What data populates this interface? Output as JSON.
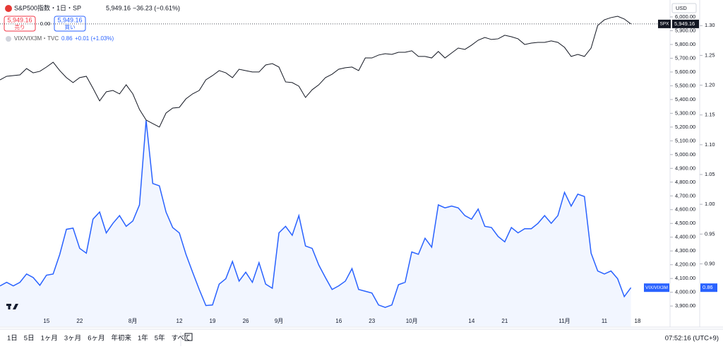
{
  "header": {
    "symbol": "S&P500指数・1日・SP",
    "price": "5,949.16",
    "change": "−36.23 (−0.61%)",
    "sell_price": "5,949.16",
    "sell": "売り",
    "spread": "0.00",
    "buy_price": "5,949.16",
    "buy": "買い",
    "compare": "VIX/VIX3M・TVC",
    "compare_value": "0.86",
    "compare_change": "+0.01 (+1.03%)"
  },
  "currency": "USD",
  "chart_data": {
    "type": "line",
    "categories": [
      null,
      null,
      null,
      null,
      null,
      null,
      null,
      "15",
      null,
      null,
      null,
      null,
      "22",
      null,
      null,
      null,
      null,
      null,
      null,
      null,
      "8月",
      null,
      null,
      null,
      null,
      null,
      null,
      "12",
      null,
      null,
      null,
      null,
      "19",
      null,
      null,
      null,
      null,
      "26",
      null,
      null,
      null,
      null,
      "9月",
      null,
      null,
      null,
      null,
      null,
      null,
      null,
      null,
      "16",
      null,
      null,
      null,
      null,
      "23",
      null,
      null,
      null,
      null,
      null,
      "10月",
      null,
      null,
      null,
      null,
      null,
      null,
      null,
      null,
      "14",
      null,
      null,
      null,
      null,
      "21",
      null,
      null,
      null,
      null,
      null,
      null,
      null,
      null,
      "11月",
      null,
      null,
      null,
      null,
      null,
      "11",
      null,
      null,
      null,
      null,
      "18"
    ],
    "series": [
      {
        "name": "SPX",
        "color": "#131722",
        "last_label": "5,949.16",
        "values": [
          5543,
          5569,
          5574,
          5579,
          5625,
          5594,
          5605,
          5636,
          5671,
          5610,
          5559,
          5523,
          5559,
          5569,
          5482,
          5390,
          5456,
          5466,
          5441,
          5507,
          5441,
          5328,
          5251,
          5225,
          5200,
          5302,
          5338,
          5343,
          5405,
          5441,
          5466,
          5543,
          5574,
          5610,
          5594,
          5559,
          5620,
          5610,
          5600,
          5600,
          5651,
          5661,
          5636,
          5528,
          5523,
          5497,
          5415,
          5471,
          5507,
          5559,
          5584,
          5620,
          5631,
          5636,
          5610,
          5702,
          5702,
          5723,
          5733,
          5728,
          5743,
          5743,
          5754,
          5713,
          5713,
          5702,
          5749,
          5702,
          5738,
          5774,
          5764,
          5795,
          5831,
          5851,
          5836,
          5841,
          5867,
          5856,
          5841,
          5800,
          5810,
          5815,
          5815,
          5826,
          5815,
          5779,
          5713,
          5728,
          5713,
          5774,
          5938,
          5979,
          5995,
          6005,
          5985,
          5949.16,
          null
        ]
      },
      {
        "name": "VIX/VIX3M",
        "color": "#2962ff",
        "axis": "y2",
        "last_label": "0.86",
        "values": [
          0.863,
          0.869,
          0.863,
          0.869,
          0.883,
          0.877,
          0.864,
          0.881,
          0.883,
          0.916,
          0.958,
          0.96,
          0.926,
          0.918,
          0.975,
          0.987,
          0.952,
          0.968,
          0.981,
          0.963,
          0.972,
          0.999,
          1.141,
          1.035,
          1.031,
          0.987,
          0.961,
          0.952,
          0.916,
          0.886,
          0.857,
          0.83,
          0.831,
          0.866,
          0.875,
          0.904,
          0.871,
          0.886,
          0.869,
          0.902,
          0.866,
          0.859,
          0.952,
          0.963,
          0.948,
          0.981,
          0.93,
          0.926,
          0.898,
          0.877,
          0.857,
          0.863,
          0.871,
          0.892,
          0.857,
          0.854,
          0.851,
          0.831,
          0.827,
          0.831,
          0.865,
          0.869,
          0.92,
          0.916,
          0.943,
          0.928,
          0.999,
          0.994,
          0.997,
          0.994,
          0.981,
          0.975,
          0.992,
          0.963,
          0.961,
          0.946,
          0.937,
          0.961,
          0.952,
          0.959,
          0.959,
          0.968,
          0.981,
          0.968,
          0.981,
          1.02,
          0.997,
          1.017,
          1.013,
          0.918,
          0.888,
          0.883,
          0.888,
          0.875,
          0.845,
          0.86,
          null
        ]
      }
    ],
    "ylim": [
      3752,
      6123
    ],
    "yticks": [
      {
        "value": 6000,
        "label": "6,000.00"
      },
      {
        "value": 5900,
        "label": "5,900.00"
      },
      {
        "value": 5800,
        "label": "5,800.00"
      },
      {
        "value": 5700,
        "label": "5,700.00"
      },
      {
        "value": 5600,
        "label": "5,600.00"
      },
      {
        "value": 5500,
        "label": "5,500.00"
      },
      {
        "value": 5400,
        "label": "5,400.00"
      },
      {
        "value": 5300,
        "label": "5,300.00"
      },
      {
        "value": 5200,
        "label": "5,200.00"
      },
      {
        "value": 5100,
        "label": "5,100.00"
      },
      {
        "value": 5000,
        "label": "5,000.00"
      },
      {
        "value": 4900,
        "label": "4,900.00"
      },
      {
        "value": 4800,
        "label": "4,800.00"
      },
      {
        "value": 4700,
        "label": "4,700.00"
      },
      {
        "value": 4600,
        "label": "4,600.00"
      },
      {
        "value": 4500,
        "label": "4,500.00"
      },
      {
        "value": 4400,
        "label": "4,400.00"
      },
      {
        "value": 4300,
        "label": "4,300.00"
      },
      {
        "value": 4200,
        "label": "4,200.00"
      },
      {
        "value": 4100,
        "label": "4,100.00"
      },
      {
        "value": 4000,
        "label": "4,000.00"
      },
      {
        "value": 3900,
        "label": "3,900.00"
      }
    ],
    "y2lim": [
      0.795,
      1.343
    ],
    "y2ticks": [
      {
        "value": 1.3,
        "label": "1.30"
      },
      1.25,
      {
        "value": 1.2,
        "label": "1.20"
      },
      1.15,
      {
        "value": 1.1,
        "label": "1.10"
      },
      1.05,
      {
        "value": 1,
        "label": "1.00"
      },
      0.95,
      {
        "value": 0.9,
        "label": "0.90"
      }
    ]
  },
  "toolbar": {
    "ranges": [
      "1日",
      "5日",
      "1ヶ月",
      "3ヶ月",
      "6ヶ月",
      "年初来",
      "1年",
      "5年",
      "すべて"
    ],
    "time": "07:52:16 (UTC+9)"
  }
}
